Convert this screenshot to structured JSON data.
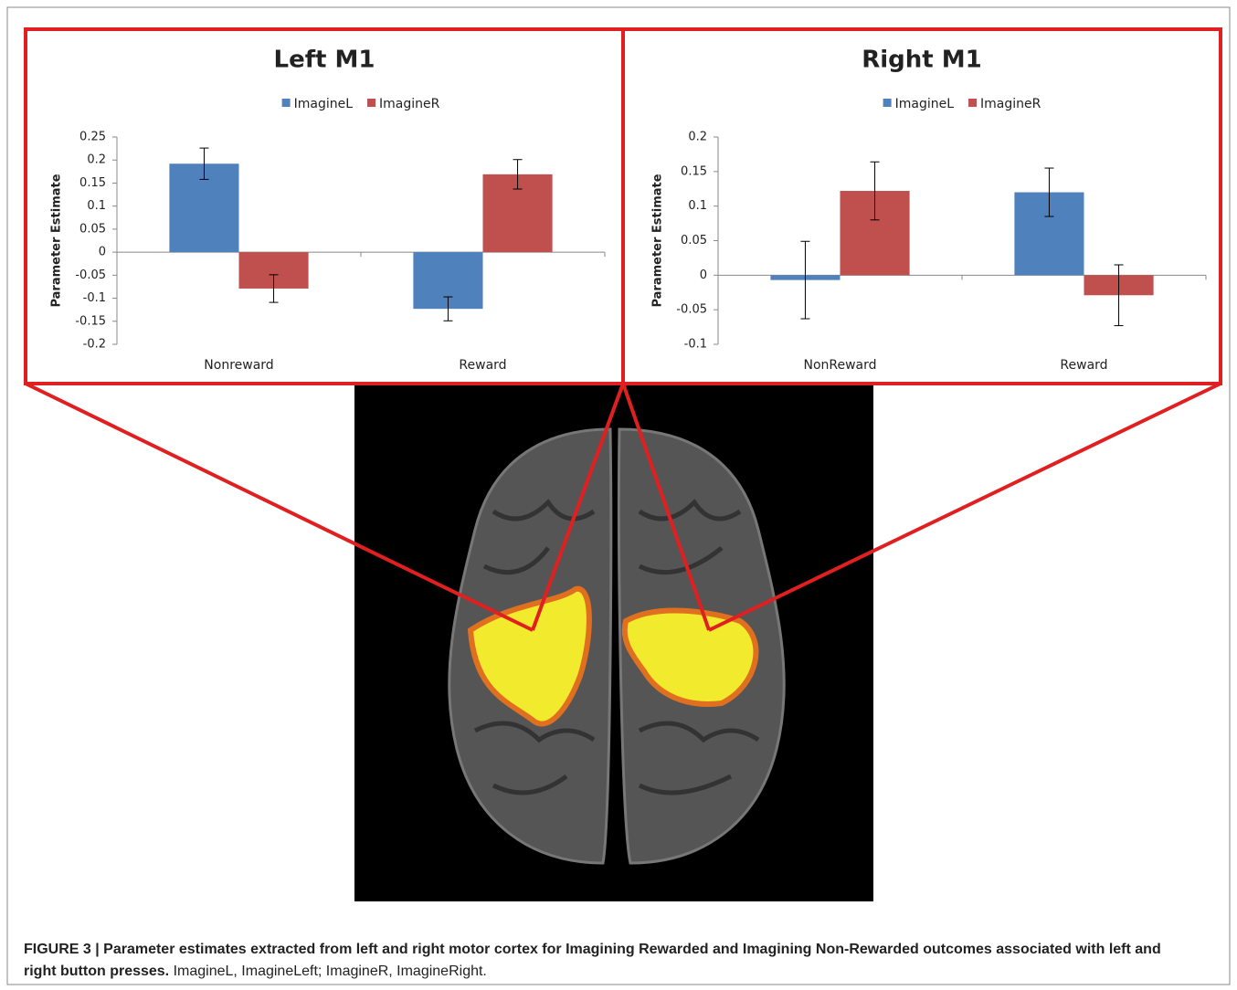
{
  "chart_data": [
    {
      "type": "bar",
      "title": "Left M1",
      "y_label": "Parameter Estimate",
      "categories": [
        "Nonreward",
        "Reward"
      ],
      "series": [
        {
          "name": "ImagineL",
          "color": "#4f81bd",
          "values": [
            0.192,
            -0.123
          ],
          "errors": [
            0.034,
            0.026
          ]
        },
        {
          "name": "ImagineR",
          "color": "#c0504d",
          "values": [
            -0.079,
            0.169
          ],
          "errors": [
            0.03,
            0.032
          ]
        }
      ],
      "ylim": [
        -0.2,
        0.25
      ],
      "yticks": [
        -0.2,
        -0.15,
        -0.1,
        -0.05,
        0,
        0.05,
        0.1,
        0.15,
        0.2,
        0.25
      ],
      "legend": "top"
    },
    {
      "type": "bar",
      "title": "Right M1",
      "y_label": "Parameter Estimate",
      "categories": [
        "NonReward",
        "Reward"
      ],
      "series": [
        {
          "name": "ImagineL",
          "color": "#4f81bd",
          "values": [
            -0.007,
            0.12
          ],
          "errors": [
            0.056,
            0.035
          ]
        },
        {
          "name": "ImagineR",
          "color": "#c0504d",
          "values": [
            0.122,
            -0.029
          ],
          "errors": [
            0.042,
            0.044
          ]
        }
      ],
      "ylim": [
        -0.1,
        0.2
      ],
      "yticks": [
        -0.1,
        -0.05,
        0,
        0.05,
        0.1,
        0.15,
        0.2
      ],
      "legend": "top"
    }
  ],
  "caption": {
    "label": "FIGURE 3 | Parameter estimates extracted from left and right motor cortex for Imagining Rewarded and Imagining Non-Rewarded outcomes associated with left and right button presses.",
    "text": "ImagineL, ImagineLeft; ImagineR, ImagineRight."
  }
}
